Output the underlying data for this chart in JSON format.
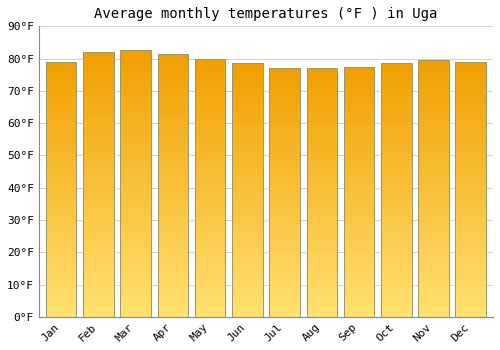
{
  "title": "Average monthly temperatures (°F ) in Uga",
  "months": [
    "Jan",
    "Feb",
    "Mar",
    "Apr",
    "May",
    "Jun",
    "Jul",
    "Aug",
    "Sep",
    "Oct",
    "Nov",
    "Dec"
  ],
  "values": [
    79,
    82,
    82.5,
    81.5,
    80,
    78.5,
    77,
    77,
    77.5,
    78.5,
    79.5,
    79
  ],
  "bar_color_top": "#F5A200",
  "bar_color_bottom": "#FFE080",
  "edge_color": "#B8860B",
  "ylim": [
    0,
    90
  ],
  "ytick_step": 10,
  "background_color": "#FFFFFF",
  "grid_color": "#CCCCCC",
  "title_fontsize": 10,
  "tick_fontsize": 8,
  "font_family": "monospace"
}
